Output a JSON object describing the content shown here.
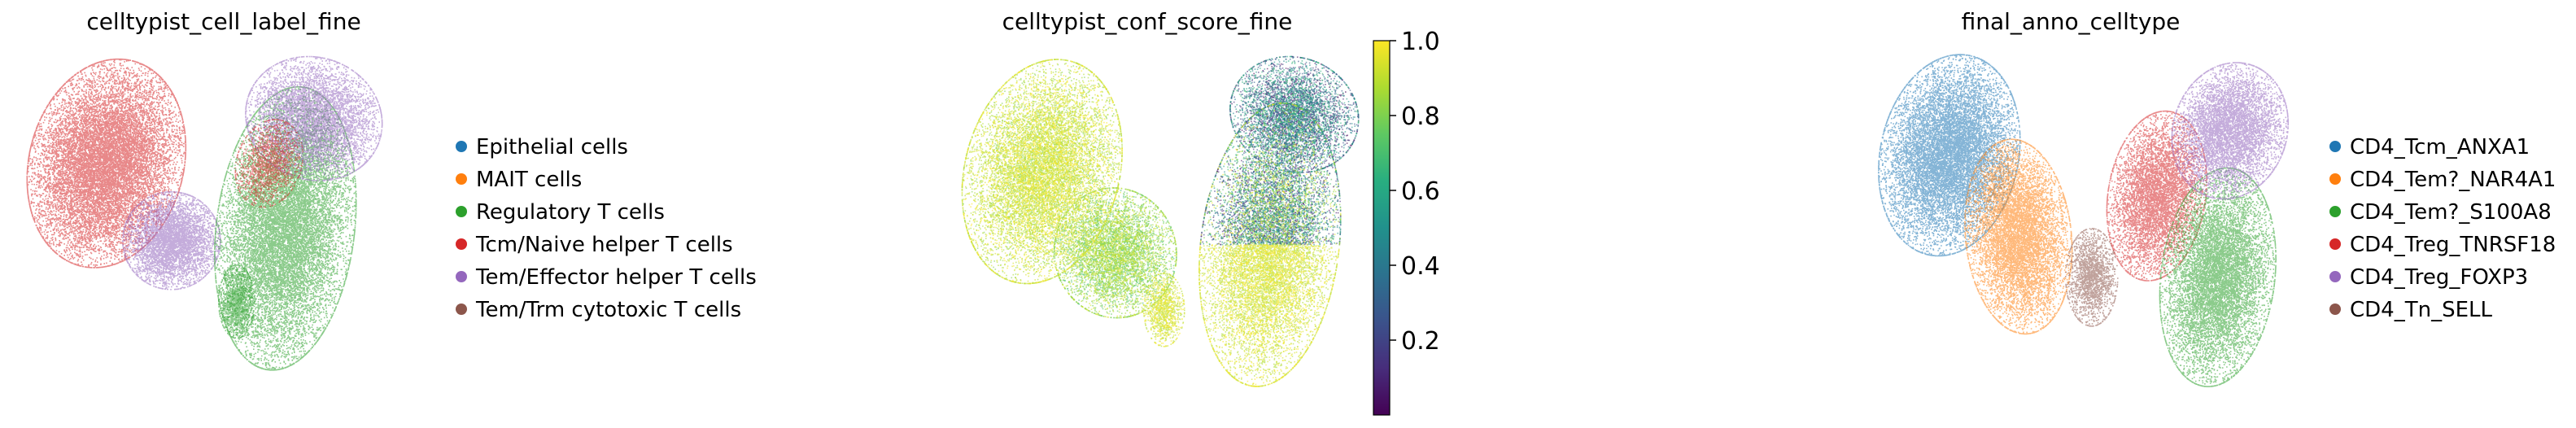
{
  "chart_data": [
    {
      "type": "scatter",
      "title": "celltypist_cell_label_fine",
      "legend_placement": "right",
      "legend": [
        {
          "label": "Epithelial cells",
          "color": "#1f77b4"
        },
        {
          "label": "MAIT cells",
          "color": "#ff7f0e"
        },
        {
          "label": "Regulatory T cells",
          "color": "#2ca02c"
        },
        {
          "label": "Tcm/Naive helper T cells",
          "color": "#d62728"
        },
        {
          "label": "Tem/Effector helper T cells",
          "color": "#9467bd"
        },
        {
          "label": "Tem/Trm cytotoxic T cells",
          "color": "#8c564b"
        }
      ]
    },
    {
      "type": "scatter",
      "title": "celltypist_conf_score_fine",
      "colorbar": {
        "colormap": "viridis",
        "range": [
          0.0,
          1.0
        ],
        "ticks": [
          "1.0",
          "0.8",
          "0.6",
          "0.4",
          "0.2"
        ],
        "tick_values": [
          1.0,
          0.8,
          0.6,
          0.4,
          0.2
        ]
      }
    },
    {
      "type": "scatter",
      "title": "final_anno_celltype",
      "legend_placement": "right",
      "legend": [
        {
          "label": "CD4_Tcm_ANXA1",
          "color": "#1f77b4"
        },
        {
          "label": "CD4_Tem?_NAR4A1",
          "color": "#ff7f0e"
        },
        {
          "label": "CD4_Tem?_S100A8",
          "color": "#2ca02c"
        },
        {
          "label": "CD4_Treg_TNRSF18",
          "color": "#d62728"
        },
        {
          "label": "CD4_Treg_FOXP3",
          "color": "#9467bd"
        },
        {
          "label": "CD4_Tn_SELL",
          "color": "#8c564b"
        }
      ]
    }
  ]
}
